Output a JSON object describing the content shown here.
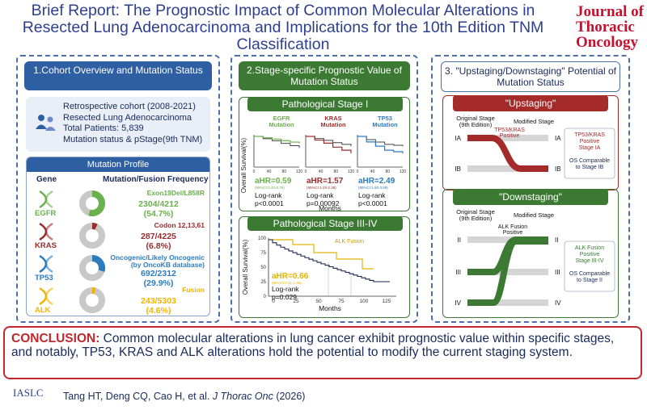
{
  "header": {
    "title": "Brief Report: The Prognostic Impact of Common Molecular Alterations in Resected Lung Adenocarcinoma and Implications for the 10th Edition TNM Classification",
    "journal": [
      "Journal of",
      "Thoracic",
      "Oncology"
    ]
  },
  "panel1": {
    "title": "1.Cohort Overview and Mutation Status",
    "cohort": [
      "Retrospective cohort (2008-2021)",
      "Resected Lung Adenocarcinoma",
      "Total Patients: 5,839",
      "Mutation status & pStage(9th TNM)"
    ],
    "profile_title": "Mutation Profile",
    "col_gene": "Gene",
    "col_freq": "Mutation/Fusion Frequency",
    "genes": [
      {
        "name": "EGFR",
        "detail": "Exon19Del/L858R",
        "count": "2304/4212",
        "pct": "(54.7%)",
        "fraction": 0.547,
        "color": "#6ab04c"
      },
      {
        "name": "KRAS",
        "detail": "Codon 12,13,61",
        "count": "287/4225",
        "pct": "(6.8%)",
        "fraction": 0.068,
        "color": "#9b2c2c"
      },
      {
        "name": "TP53",
        "detail": "Oncogenic/Likely Oncogenic\n(by OncoKB database)",
        "count": "692/2312",
        "pct": "(29.9%)",
        "fraction": 0.299,
        "color": "#2b7bbf"
      },
      {
        "name": "ALK",
        "detail": "Fusion",
        "count": "243/5303",
        "pct": "(4.6%)",
        "fraction": 0.046,
        "color": "#f0b400"
      }
    ]
  },
  "panel2": {
    "title": "2.Stage-specific Prognostic Value of Mutation Status",
    "stage1_title": "Pathological Stage I",
    "stage34_title": "Pathological Stage III-IV",
    "ylabel": "Overall Survival(%)",
    "xlabel": "Months",
    "mini": [
      {
        "label": "EGFR\nMutation",
        "color": "#6ab04c",
        "ahr": "aHR=0.59",
        "ci": "(95%CI:0.43-0.79)",
        "lr": "Log-rank",
        "p": "p<0.0001"
      },
      {
        "label": "KRAS\nMutation",
        "color": "#9b2c2c",
        "ahr": "aHR=1.57",
        "ci": "(95%CI:1.03-2.38)",
        "lr": "Log-rank",
        "p": "p=0.00092"
      },
      {
        "label": "TP53\nMutation",
        "color": "#2b7bbf",
        "ahr": "aHR=2.49",
        "ci": "(95%CI:1.50-3.89)",
        "lr": "Log-rank",
        "p": "p<0.0001"
      }
    ],
    "mini_ticks": [
      "0",
      "40",
      "80",
      "120"
    ],
    "big": {
      "label": "ALK Fusion",
      "ahr": "aHR=0.66",
      "ci": "(95%CI:0.41-1.06)",
      "lr": "Log-rank",
      "p": "p=0.029",
      "xticks": [
        "0",
        "25",
        "50",
        "75",
        "100",
        "125"
      ],
      "yticks": [
        "0",
        "25",
        "50",
        "75",
        "100"
      ]
    }
  },
  "panel3": {
    "title": "3. \"Upstaging/Downstaging\" Potential of Mutation Status",
    "up": {
      "title": "\"Upstaging\"",
      "orig": "Original Stage\n(9th Edition)",
      "mod": "Modified Stage",
      "from": "IA",
      "to": "IB",
      "from2": "IB",
      "to2": "IA",
      "tag": "TP53/KRAS\nPositive",
      "note1": "TP53/KRAS\nPositive\nStage IA",
      "note2": "OS Comparable\nto Stage IB"
    },
    "down": {
      "title": "\"Downstaging\"",
      "orig": "Original Stage\n(9th Edition)",
      "mod": "Modified Stage",
      "tag": "ALK Fusion\nPositive",
      "stages_left": [
        "II",
        "III",
        "IV"
      ],
      "stages_right": [
        "II",
        "III",
        "IV"
      ],
      "note1": "ALK Fusion\nPositive\nStage III-IV",
      "note2": "OS Comparable\nto Stage II"
    }
  },
  "conclusion": {
    "label": "CONCLUSION:",
    "text": " Common molecular alterations in lung cancer exhibit prognostic value within specific stages, and notably, TP53, KRAS and ALK alterations hold the potential to modify the current staging system."
  },
  "footer": {
    "society": "IASLC",
    "authors": "Tang HT, Deng CQ, Cao H, et al. ",
    "journal": "J Thorac Onc",
    "year": " (2026)"
  },
  "colors": {
    "blue": "#2f5fa3",
    "green": "#3c7a34",
    "red": "#a52a2a",
    "yellow": "#e0b400"
  }
}
